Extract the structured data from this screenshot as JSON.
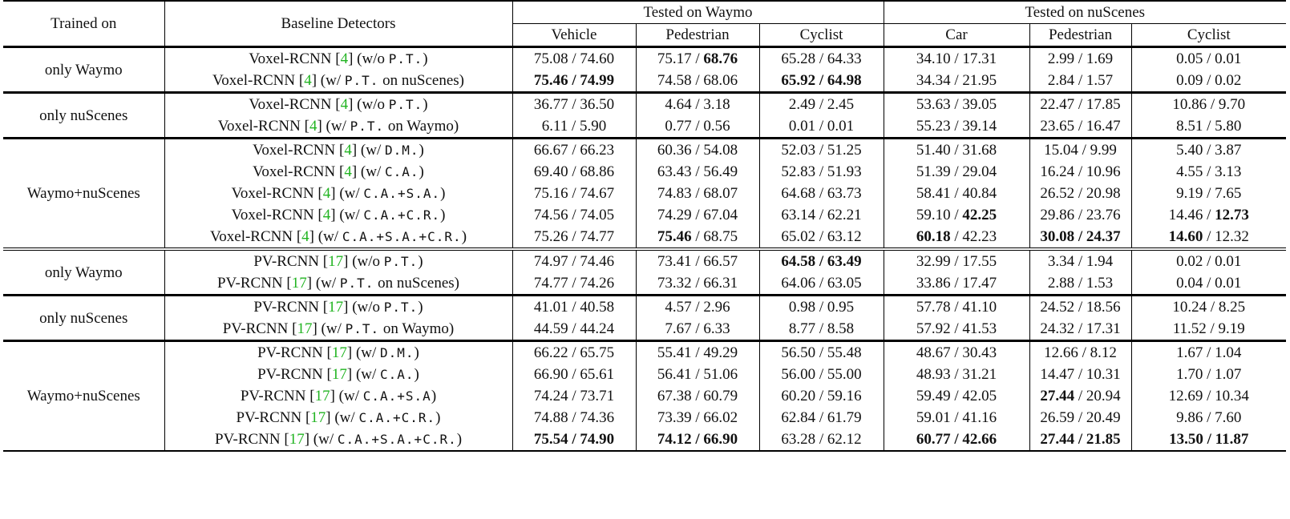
{
  "header": {
    "trained_on": "Trained on",
    "baseline": "Baseline Detectors",
    "tested_waymo": "Tested on Waymo",
    "tested_nuscenes": "Tested on nuScenes",
    "waymo_cols": [
      "Vehicle",
      "Pedestrian",
      "Cyclist"
    ],
    "nuscenes_cols": [
      "Car",
      "Pedestrian",
      "Cyclist"
    ]
  },
  "groups": [
    {
      "label": "only Waymo",
      "rows": [
        {
          "model": "Voxel-RCNN",
          "ref": "4",
          "pre": "(w/o",
          "tag": "P.T.",
          "post": ")",
          "cells": [
            [
              "75.08 / 74.60"
            ],
            [
              "75.17 / ",
              "68.76"
            ],
            [
              "65.28 / 64.33"
            ],
            [
              "34.10 / 17.31"
            ],
            [
              "2.99 / 1.69"
            ],
            [
              "0.05 / 0.01"
            ]
          ]
        },
        {
          "model": "Voxel-RCNN",
          "ref": "4",
          "pre": "(w/",
          "tag": "P.T.",
          "post": " on nuScenes)",
          "cells": [
            [
              "",
              "75.46 / 74.99"
            ],
            [
              "74.58 / 68.06"
            ],
            [
              "",
              "65.92 / 64.98"
            ],
            [
              "34.34 / 21.95"
            ],
            [
              "2.84 / 1.57"
            ],
            [
              "0.09 / 0.02"
            ]
          ]
        }
      ]
    },
    {
      "label": "only nuScenes",
      "rows": [
        {
          "model": "Voxel-RCNN",
          "ref": "4",
          "pre": "(w/o",
          "tag": "P.T.",
          "post": ")",
          "cells": [
            [
              "36.77 / 36.50"
            ],
            [
              "4.64 / 3.18"
            ],
            [
              "2.49 / 2.45"
            ],
            [
              "53.63 / 39.05"
            ],
            [
              "22.47 / 17.85"
            ],
            [
              "10.86 / 9.70"
            ]
          ]
        },
        {
          "model": "Voxel-RCNN",
          "ref": "4",
          "pre": "(w/",
          "tag": "P.T.",
          "post": " on Waymo)",
          "cells": [
            [
              "6.11 / 5.90"
            ],
            [
              "0.77 / 0.56"
            ],
            [
              "0.01 / 0.01"
            ],
            [
              "55.23 / 39.14"
            ],
            [
              "23.65 / 16.47"
            ],
            [
              "8.51 / 5.80"
            ]
          ]
        }
      ]
    },
    {
      "label": "Waymo+nuScenes",
      "rows": [
        {
          "model": "Voxel-RCNN",
          "ref": "4",
          "pre": "(w/",
          "tag": "D.M.",
          "post": ")",
          "cells": [
            [
              "66.67 / 66.23"
            ],
            [
              "60.36 / 54.08"
            ],
            [
              "52.03 / 51.25"
            ],
            [
              "51.40 / 31.68"
            ],
            [
              "15.04 / 9.99"
            ],
            [
              "5.40 / 3.87"
            ]
          ]
        },
        {
          "model": "Voxel-RCNN",
          "ref": "4",
          "pre": "(w/",
          "tag": "C.A.",
          "post": ")",
          "cells": [
            [
              "69.40 / 68.86"
            ],
            [
              "63.43 / 56.49"
            ],
            [
              "52.83 / 51.93"
            ],
            [
              "51.39 / 29.04"
            ],
            [
              "16.24 / 10.96"
            ],
            [
              "4.55 / 3.13"
            ]
          ]
        },
        {
          "model": "Voxel-RCNN",
          "ref": "4",
          "pre": "(w/",
          "tag": "C.A.+S.A.",
          "post": ")",
          "cells": [
            [
              "75.16 / 74.67"
            ],
            [
              "74.83 / 68.07"
            ],
            [
              "64.68 / 63.73"
            ],
            [
              "58.41 / 40.84"
            ],
            [
              "26.52 / 20.98"
            ],
            [
              "9.19 / 7.65"
            ]
          ]
        },
        {
          "model": "Voxel-RCNN",
          "ref": "4",
          "pre": "(w/",
          "tag": "C.A.+C.R.",
          "post": ")",
          "cells": [
            [
              "74.56 / 74.05"
            ],
            [
              "74.29 / 67.04"
            ],
            [
              "63.14 / 62.21"
            ],
            [
              "59.10 / ",
              "42.25"
            ],
            [
              "29.86 / 23.76"
            ],
            [
              "14.46 / ",
              "12.73"
            ]
          ]
        },
        {
          "model": "Voxel-RCNN",
          "ref": "4",
          "pre": "(w/",
          "tag": "C.A.+S.A.+C.R.",
          "post": ")",
          "cells": [
            [
              "75.26 / 74.77"
            ],
            [
              "",
              "75.46",
              " / 68.75"
            ],
            [
              "65.02 / 63.12"
            ],
            [
              "",
              "60.18",
              " / 42.23"
            ],
            [
              "",
              "30.08 / 24.37"
            ],
            [
              "",
              "14.60",
              " / 12.32"
            ]
          ]
        }
      ]
    },
    {
      "label": "only Waymo",
      "rows": [
        {
          "model": "PV-RCNN",
          "ref": "17",
          "pre": "(w/o",
          "tag": "P.T.",
          "post": ")",
          "cells": [
            [
              "74.97 / 74.46"
            ],
            [
              "73.41 / 66.57"
            ],
            [
              "",
              "64.58 / 63.49"
            ],
            [
              "32.99 / 17.55"
            ],
            [
              "3.34 / 1.94"
            ],
            [
              "0.02 / 0.01"
            ]
          ]
        },
        {
          "model": "PV-RCNN",
          "ref": "17",
          "pre": "(w/",
          "tag": "P.T.",
          "post": " on nuScenes)",
          "cells": [
            [
              "74.77 / 74.26"
            ],
            [
              "73.32 / 66.31"
            ],
            [
              "64.06 / 63.05"
            ],
            [
              "33.86 / 17.47"
            ],
            [
              "2.88 / 1.53"
            ],
            [
              "0.04 / 0.01"
            ]
          ]
        }
      ]
    },
    {
      "label": "only nuScenes",
      "rows": [
        {
          "model": "PV-RCNN",
          "ref": "17",
          "pre": "(w/o",
          "tag": "P.T.",
          "post": ")",
          "cells": [
            [
              "41.01 / 40.58"
            ],
            [
              "4.57 / 2.96"
            ],
            [
              "0.98 / 0.95"
            ],
            [
              "57.78 / 41.10"
            ],
            [
              "24.52 / 18.56"
            ],
            [
              "10.24 / 8.25"
            ]
          ]
        },
        {
          "model": "PV-RCNN",
          "ref": "17",
          "pre": "(w/",
          "tag": "P.T.",
          "post": " on Waymo)",
          "cells": [
            [
              "44.59 / 44.24"
            ],
            [
              "7.67 / 6.33"
            ],
            [
              "8.77 / 8.58"
            ],
            [
              "57.92 / 41.53"
            ],
            [
              "24.32 / 17.31"
            ],
            [
              "11.52 / 9.19"
            ]
          ]
        }
      ]
    },
    {
      "label": "Waymo+nuScenes",
      "rows": [
        {
          "model": "PV-RCNN",
          "ref": "17",
          "pre": "(w/",
          "tag": "D.M.",
          "post": ")",
          "cells": [
            [
              "66.22 / 65.75"
            ],
            [
              "55.41 / 49.29"
            ],
            [
              "56.50 / 55.48"
            ],
            [
              "48.67 / 30.43"
            ],
            [
              "12.66 / 8.12"
            ],
            [
              "1.67 / 1.04"
            ]
          ]
        },
        {
          "model": "PV-RCNN",
          "ref": "17",
          "pre": "(w/",
          "tag": "C.A.",
          "post": ")",
          "cells": [
            [
              "66.90 / 65.61"
            ],
            [
              "56.41 / 51.06"
            ],
            [
              "56.00 / 55.00"
            ],
            [
              "48.93 / 31.21"
            ],
            [
              "14.47 / 10.31"
            ],
            [
              "1.70 / 1.07"
            ]
          ]
        },
        {
          "model": "PV-RCNN",
          "ref": "17",
          "pre": "(w/",
          "tag": "C.A.+S.A",
          "post": ")",
          "cells": [
            [
              "74.24 / 73.71"
            ],
            [
              "67.38 / 60.79"
            ],
            [
              "60.20 / 59.16"
            ],
            [
              "59.49 / 42.05"
            ],
            [
              "",
              "27.44",
              " / 20.94"
            ],
            [
              "12.69 / 10.34"
            ]
          ]
        },
        {
          "model": "PV-RCNN",
          "ref": "17",
          "pre": "(w/",
          "tag": "C.A.+C.R.",
          "post": ")",
          "cells": [
            [
              "74.88 / 74.36"
            ],
            [
              "73.39 / 66.02"
            ],
            [
              "62.84 / 61.79"
            ],
            [
              "59.01 / 41.16"
            ],
            [
              "26.59 / 20.49"
            ],
            [
              "9.86 / 7.60"
            ]
          ]
        },
        {
          "model": "PV-RCNN",
          "ref": "17",
          "pre": "(w/",
          "tag": "C.A.+S.A.+C.R.",
          "post": ")",
          "cells": [
            [
              "",
              "75.54 / 74.90"
            ],
            [
              "",
              "74.12 / 66.90"
            ],
            [
              "63.28 / 62.12"
            ],
            [
              "",
              "60.77 / 42.66"
            ],
            [
              "",
              "27.44 / 21.85"
            ],
            [
              "",
              "13.50 / 11.87"
            ]
          ]
        }
      ]
    }
  ]
}
